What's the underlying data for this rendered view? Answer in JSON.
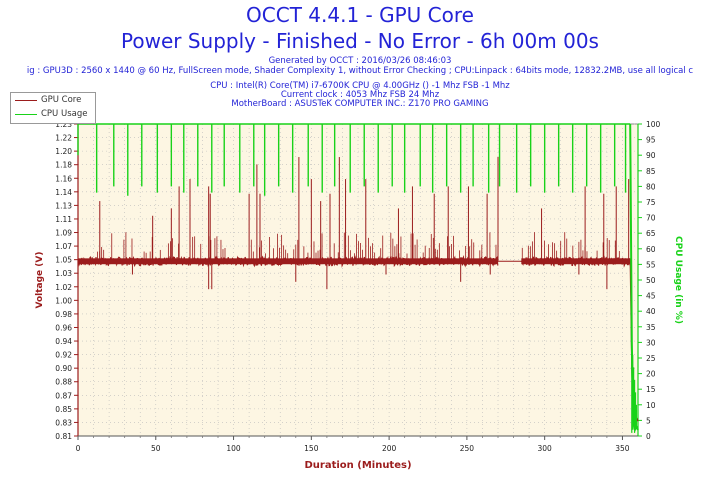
{
  "header": {
    "title": "OCCT 4.4.1 - GPU Core",
    "subtitle": "Power Supply - Finished - No Error - 6h 00m 00s",
    "generated": "Generated by OCCT : 2016/03/26 08:46:03",
    "config": "ig : GPU3D : 2560 x 1440 @ 60 Hz, FullScreen mode, Shader Complexity 1, without Error Checking ; CPU:Linpack : 64bits mode, 12832.2MB, use all logical c",
    "cpu": "CPU : Intel(R) Core(TM) i7-6700K CPU @ 4.00GHz () -1 Mhz FSB -1 Mhz",
    "clock": "Current clock : 4053 Mhz FSB 24 Mhz",
    "motherboard": "MotherBoard : ASUSTeK COMPUTER INC.: Z170 PRO GAMING"
  },
  "chart_data": {
    "type": "line",
    "xlabel": "Duration (Minutes)",
    "ylabel_left": "Voltage (V)",
    "ylabel_right": "CPU Usage (in %)",
    "xlim": [
      0,
      360
    ],
    "xticks": [
      "0",
      "50",
      "100",
      "150",
      "200",
      "250",
      "300",
      "350"
    ],
    "xtick_values": [
      0,
      50,
      100,
      150,
      200,
      250,
      300,
      350
    ],
    "ylim_left": [
      0.81,
      1.235
    ],
    "yticks_left": [
      "0.81",
      "0.83",
      "0.85",
      "0.87",
      "0.88",
      "0.90",
      "0.92",
      "0.94",
      "0.96",
      "0.98",
      "1.00",
      "1.02",
      "1.03",
      "1.05",
      "1.07",
      "1.09",
      "1.11",
      "1.13",
      "1.14",
      "1.16",
      "1.18",
      "1.20",
      "1.22",
      "1.23"
    ],
    "ylim_right": [
      0,
      100
    ],
    "yticks_right": [
      "0",
      "5",
      "10",
      "15",
      "20",
      "25",
      "30",
      "35",
      "40",
      "45",
      "50",
      "55",
      "60",
      "65",
      "70",
      "75",
      "80",
      "85",
      "90",
      "95",
      "100"
    ],
    "grid": true,
    "legend_position": "top-left",
    "colors": {
      "gpu_core": "#9b1c1c",
      "cpu_usage": "#19d219",
      "axis_left": "#9b1c1c",
      "axis_right": "#19d219",
      "plot_bg": "#fdf6e3",
      "title": "#2323d6"
    },
    "series": [
      {
        "name": "GPU Core",
        "axis": "left",
        "baseline": 1.048,
        "segments": [
          [
            0,
            270
          ],
          [
            285,
            356
          ]
        ],
        "flat_segment": {
          "x": [
            270,
            285
          ],
          "y": 1.048
        },
        "spikes": [
          {
            "x": 14,
            "y": 1.13
          },
          {
            "x": 48,
            "y": 1.11
          },
          {
            "x": 60,
            "y": 1.12
          },
          {
            "x": 65,
            "y": 1.15
          },
          {
            "x": 72,
            "y": 1.16
          },
          {
            "x": 84,
            "y": 1.15
          },
          {
            "x": 110,
            "y": 1.14
          },
          {
            "x": 117,
            "y": 1.14
          },
          {
            "x": 150,
            "y": 1.16
          },
          {
            "x": 156,
            "y": 1.13
          },
          {
            "x": 162,
            "y": 1.14
          },
          {
            "x": 172,
            "y": 1.16
          },
          {
            "x": 185,
            "y": 1.16
          },
          {
            "x": 206,
            "y": 1.12
          },
          {
            "x": 215,
            "y": 1.15
          },
          {
            "x": 229,
            "y": 1.14
          },
          {
            "x": 238,
            "y": 1.15
          },
          {
            "x": 251,
            "y": 1.15
          },
          {
            "x": 263,
            "y": 1.14
          },
          {
            "x": 298,
            "y": 1.12
          },
          {
            "x": 326,
            "y": 1.15
          },
          {
            "x": 338,
            "y": 1.14
          },
          {
            "x": 346,
            "y": 1.15
          },
          {
            "x": 354,
            "y": 1.16
          },
          {
            "x": 115,
            "y": 1.18
          },
          {
            "x": 142,
            "y": 1.19
          },
          {
            "x": 168,
            "y": 1.19
          },
          {
            "x": 270,
            "y": 1.19
          },
          {
            "x": 85,
            "y": 1.14
          }
        ],
        "dips": [
          {
            "x": 35,
            "y": 1.03
          },
          {
            "x": 84,
            "y": 1.01
          },
          {
            "x": 86,
            "y": 1.01
          },
          {
            "x": 140,
            "y": 1.02
          },
          {
            "x": 160,
            "y": 1.01
          },
          {
            "x": 198,
            "y": 1.03
          },
          {
            "x": 246,
            "y": 1.02
          },
          {
            "x": 265,
            "y": 1.03
          },
          {
            "x": 322,
            "y": 1.03
          },
          {
            "x": 340,
            "y": 1.01
          }
        ],
        "end_drop": [
          [
            355,
            1.05
          ],
          [
            356,
            0.9
          ],
          [
            357,
            0.84
          ],
          [
            358,
            0.83
          ],
          [
            359,
            0.835
          ],
          [
            360,
            0.83
          ]
        ]
      },
      {
        "name": "CPU Usage",
        "axis": "right",
        "level": 100,
        "dip_x": [
          0,
          12,
          23,
          32,
          41,
          51,
          60,
          68,
          77,
          86,
          94,
          104,
          113,
          120,
          129,
          138,
          148,
          157,
          165,
          175,
          184,
          193,
          202,
          210,
          220,
          228,
          237,
          246,
          254,
          264,
          271,
          282,
          291,
          300,
          309,
          318,
          327,
          336,
          345,
          352
        ],
        "dip_y": [
          90,
          78,
          80,
          77,
          80,
          78,
          80,
          78,
          80,
          78,
          80,
          78,
          80,
          77,
          80,
          78,
          80,
          78,
          80,
          78,
          80,
          78,
          80,
          78,
          80,
          78,
          80,
          78,
          80,
          78,
          80,
          78,
          80,
          78,
          80,
          78,
          80,
          78,
          80,
          78
        ],
        "end_drop": [
          [
            355,
            100
          ],
          [
            356,
            30
          ],
          [
            357,
            5
          ],
          [
            358,
            2
          ],
          [
            359,
            3
          ],
          [
            360,
            2
          ]
        ]
      }
    ]
  }
}
